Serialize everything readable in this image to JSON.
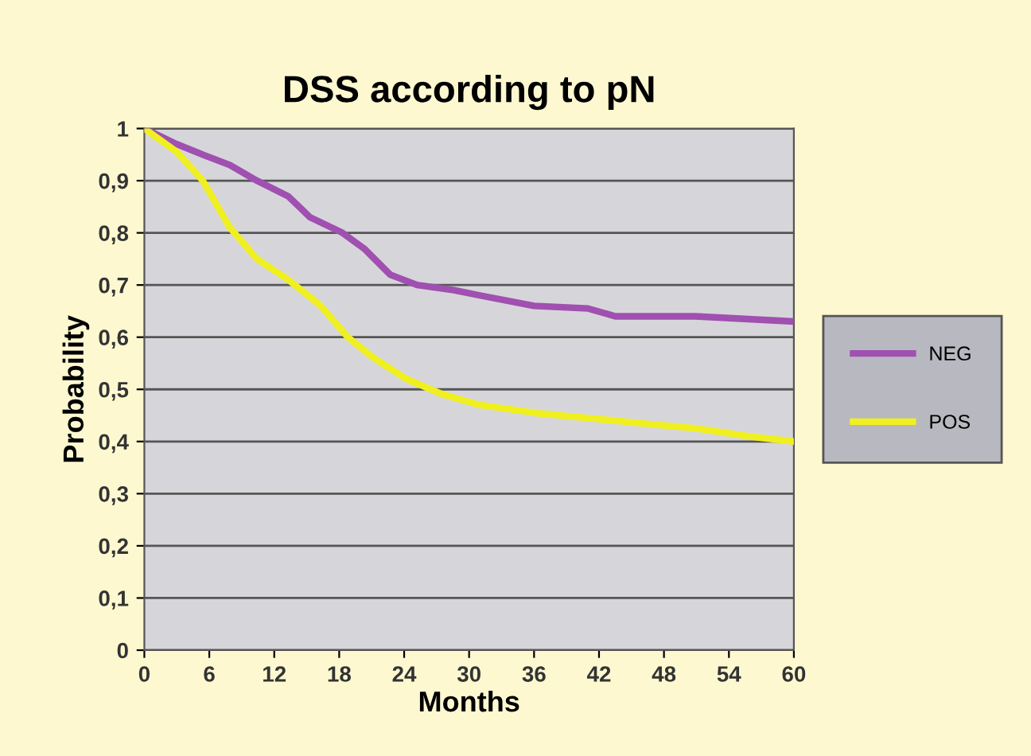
{
  "chart_data": {
    "type": "line",
    "title": "DSS according to pN",
    "xlabel": "Months",
    "ylabel": "Probability",
    "xlim": [
      0,
      60
    ],
    "xticks": [
      0,
      6,
      12,
      18,
      24,
      30,
      36,
      42,
      48,
      54,
      60
    ],
    "ylim": [
      0,
      1
    ],
    "yticks": [
      0,
      {
        "value": 0.1,
        "label": "0,1"
      },
      {
        "value": 0.2,
        "label": "0,2"
      },
      {
        "value": 0.3,
        "label": "0,3"
      },
      {
        "value": 0.4,
        "label": "0,4"
      },
      {
        "value": 0.5,
        "label": "0,5"
      },
      {
        "value": 0.6,
        "label": "0,6"
      },
      {
        "value": 0.7,
        "label": "0,7"
      },
      {
        "value": 0.8,
        "label": "0,8"
      },
      {
        "value": 0.9,
        "label": "0,9"
      },
      1
    ],
    "grid": "y",
    "legend": "right",
    "marker": "none",
    "line_style": "solid",
    "series": [
      {
        "name": "NEG",
        "color": "#a050b0",
        "x": [
          0,
          3,
          5.4,
          7.9,
          10.4,
          13.3,
          15.3,
          18.3,
          20.3,
          22.7,
          25.2,
          28.6,
          31,
          36,
          41,
          43.5,
          50.9,
          60
        ],
        "values": [
          1.0,
          0.97,
          0.95,
          0.93,
          0.9,
          0.87,
          0.83,
          0.8,
          0.77,
          0.72,
          0.7,
          0.69,
          0.68,
          0.66,
          0.655,
          0.64,
          0.64,
          0.63
        ]
      },
      {
        "name": "POS",
        "color": "#f0f020",
        "x": [
          0,
          3,
          5.4,
          7.9,
          10.4,
          13.3,
          16.3,
          18.8,
          21.2,
          24.2,
          27.6,
          31,
          36,
          41,
          45.9,
          51,
          55.8,
          60
        ],
        "values": [
          1.0,
          0.955,
          0.9,
          0.81,
          0.75,
          0.71,
          0.66,
          0.6,
          0.56,
          0.52,
          0.49,
          0.47,
          0.455,
          0.445,
          0.435,
          0.425,
          0.41,
          0.4
        ]
      }
    ]
  }
}
